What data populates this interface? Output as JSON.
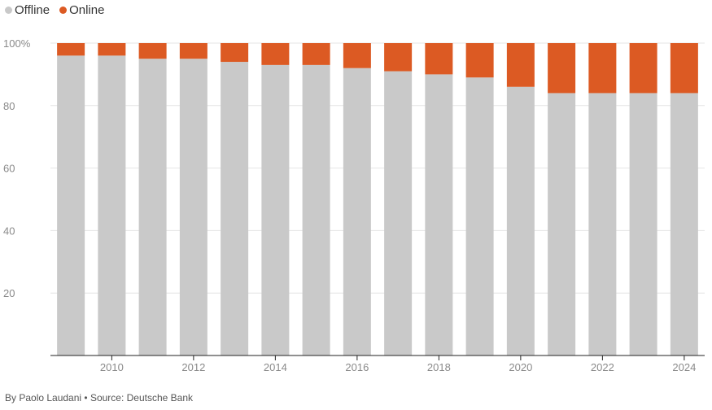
{
  "legend": {
    "items": [
      {
        "label": "Offline",
        "color": "#c9c9c9"
      },
      {
        "label": "Online",
        "color": "#dc5a23"
      }
    ]
  },
  "footer": {
    "text": "By Paolo Laudani • Source: Deutsche Bank"
  },
  "chart_data": {
    "type": "bar",
    "stacked": true,
    "title": "",
    "xlabel": "",
    "ylabel": "",
    "ylim": [
      0,
      100
    ],
    "y_ticks": [
      {
        "value": 20,
        "label": "20"
      },
      {
        "value": 40,
        "label": "40"
      },
      {
        "value": 60,
        "label": "60"
      },
      {
        "value": 80,
        "label": "80"
      },
      {
        "value": 100,
        "label": "100%"
      }
    ],
    "categories": [
      "2009",
      "2010",
      "2011",
      "2012",
      "2013",
      "2014",
      "2015",
      "2016",
      "2017",
      "2018",
      "2019",
      "2020",
      "2021",
      "2022",
      "2023",
      "2024"
    ],
    "x_tick_labels": [
      "2010",
      "2012",
      "2014",
      "2016",
      "2018",
      "2020",
      "2022",
      "2024"
    ],
    "grid": true,
    "legend_position": "top-left",
    "series": [
      {
        "name": "Offline",
        "color": "#c9c9c9",
        "values": [
          96,
          96,
          95,
          95,
          94,
          93,
          93,
          92,
          91,
          90,
          89,
          86,
          84,
          84,
          84,
          84
        ]
      },
      {
        "name": "Online",
        "color": "#dc5a23",
        "values": [
          4,
          4,
          5,
          5,
          6,
          7,
          7,
          8,
          9,
          10,
          11,
          14,
          16,
          16,
          16,
          16
        ]
      }
    ]
  }
}
